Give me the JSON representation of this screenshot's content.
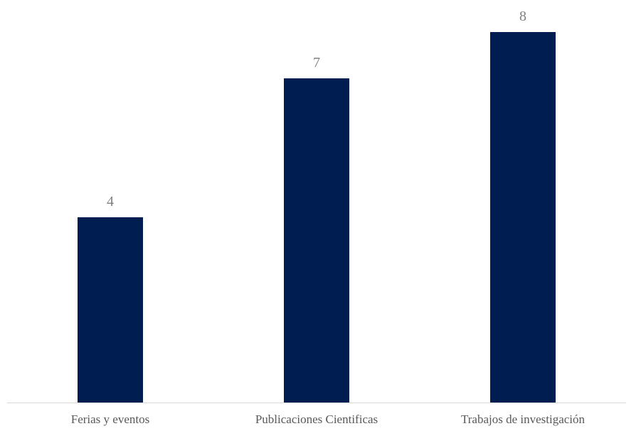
{
  "chart_data": {
    "type": "bar",
    "categories": [
      "Ferias y eventos",
      "Publicaciones Cientificas",
      "Trabajos de investigación"
    ],
    "values": [
      4,
      7,
      8
    ],
    "title": "",
    "xlabel": "",
    "ylabel": "",
    "ylim": [
      0,
      8.3
    ],
    "grid": false,
    "legend": "none",
    "data_labels": [
      "4",
      "7",
      "8"
    ],
    "colors": {
      "bar": "#001D52",
      "axis": "#D9D9D9",
      "data_label": "#808080",
      "category_label": "#595959"
    }
  }
}
